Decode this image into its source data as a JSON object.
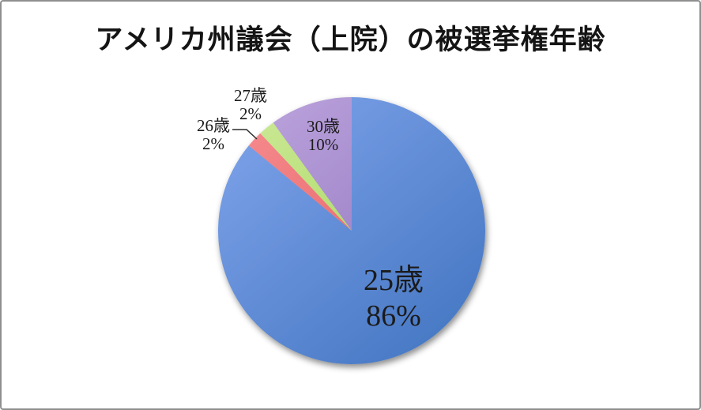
{
  "title": "アメリカ州議会（上院）の被選挙権年齢",
  "window": {
    "background_color": "#ffffff",
    "border_color": "#8f8f8f"
  },
  "chart_data": {
    "type": "pie",
    "title": "アメリカ州議会（上院）の被選挙権年齢",
    "direction": "clockwise",
    "start_angle_deg": 0,
    "legend": "none",
    "slices": [
      {
        "label": "25歳",
        "value": 86,
        "pct_label": "86%",
        "color_light": "#7BA1E8",
        "color_dark": "#4677C3",
        "label_placement": "inside"
      },
      {
        "label": "26歳",
        "value": 2,
        "pct_label": "2%",
        "color_light": "#F58A8D",
        "color_dark": "#E3595D",
        "label_placement": "outside-leader"
      },
      {
        "label": "27歳",
        "value": 2,
        "pct_label": "2%",
        "color_light": "#CBE896",
        "color_dark": "#9CD34B",
        "label_placement": "outside"
      },
      {
        "label": "30歳",
        "value": 10,
        "pct_label": "10%",
        "color_light": "#BAA2DC",
        "color_dark": "#8D70BA",
        "label_placement": "inside"
      }
    ]
  }
}
